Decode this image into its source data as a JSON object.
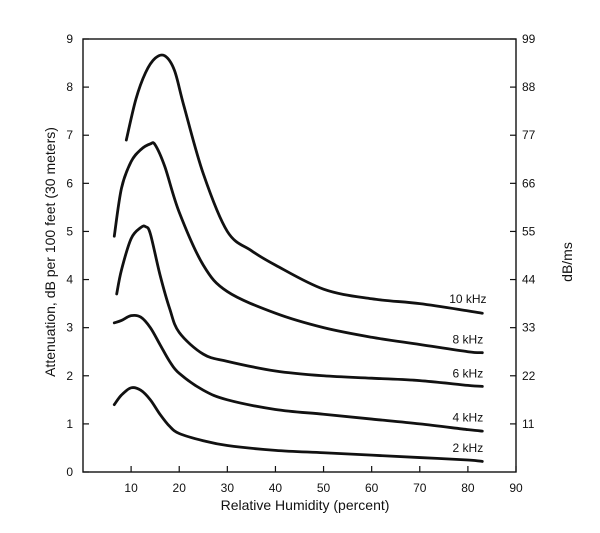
{
  "chart_data": {
    "type": "line",
    "xlabel": "Relative Humidity (percent)",
    "ylabel": "Attenuation, dB per 100 feet (30 meters)",
    "y2label": "dB/ms",
    "xlim": [
      0,
      90
    ],
    "ylim": [
      0,
      9
    ],
    "x_ticks": [
      10,
      20,
      30,
      40,
      50,
      60,
      70,
      80,
      90
    ],
    "y_ticks": [
      0,
      1,
      2,
      3,
      4,
      5,
      6,
      7,
      8,
      9
    ],
    "y2_ticks": [
      11,
      22,
      33,
      44,
      55,
      66,
      77,
      88,
      99
    ],
    "grid": false,
    "series": [
      {
        "name": "2 kHz",
        "x": [
          6.5,
          8,
          10,
          12,
          14,
          16,
          18,
          20,
          25,
          30,
          40,
          50,
          60,
          70,
          80,
          83
        ],
        "y": [
          1.4,
          1.6,
          1.75,
          1.7,
          1.5,
          1.2,
          0.95,
          0.8,
          0.65,
          0.55,
          0.45,
          0.4,
          0.35,
          0.3,
          0.25,
          0.22
        ]
      },
      {
        "name": "4 kHz",
        "x": [
          6.5,
          8,
          10,
          12,
          14,
          16,
          18,
          20,
          25,
          30,
          40,
          50,
          60,
          70,
          80,
          83
        ],
        "y": [
          3.1,
          3.15,
          3.25,
          3.22,
          3.0,
          2.65,
          2.3,
          2.05,
          1.7,
          1.5,
          1.3,
          1.2,
          1.1,
          1.0,
          0.88,
          0.85
        ]
      },
      {
        "name": "6 kHz",
        "x": [
          7,
          8,
          10,
          12,
          13,
          14,
          16,
          18,
          20,
          25,
          30,
          40,
          50,
          60,
          70,
          80,
          83
        ],
        "y": [
          3.7,
          4.2,
          4.85,
          5.08,
          5.1,
          4.95,
          4.1,
          3.4,
          2.9,
          2.45,
          2.3,
          2.1,
          2.0,
          1.95,
          1.9,
          1.8,
          1.78
        ]
      },
      {
        "name": "8 kHz",
        "x": [
          6.5,
          8,
          10,
          12,
          14,
          15,
          17,
          20,
          25,
          30,
          40,
          50,
          60,
          70,
          80,
          83
        ],
        "y": [
          4.9,
          5.9,
          6.45,
          6.7,
          6.82,
          6.8,
          6.35,
          5.4,
          4.3,
          3.75,
          3.3,
          3.0,
          2.8,
          2.65,
          2.5,
          2.48
        ]
      },
      {
        "name": "10 kHz",
        "x": [
          9,
          11,
          13,
          15,
          17,
          19,
          21,
          25,
          30,
          35,
          40,
          50,
          60,
          70,
          80,
          83
        ],
        "y": [
          6.9,
          7.75,
          8.3,
          8.6,
          8.65,
          8.35,
          7.6,
          6.2,
          5.0,
          4.6,
          4.3,
          3.8,
          3.6,
          3.5,
          3.35,
          3.3
        ]
      }
    ]
  }
}
